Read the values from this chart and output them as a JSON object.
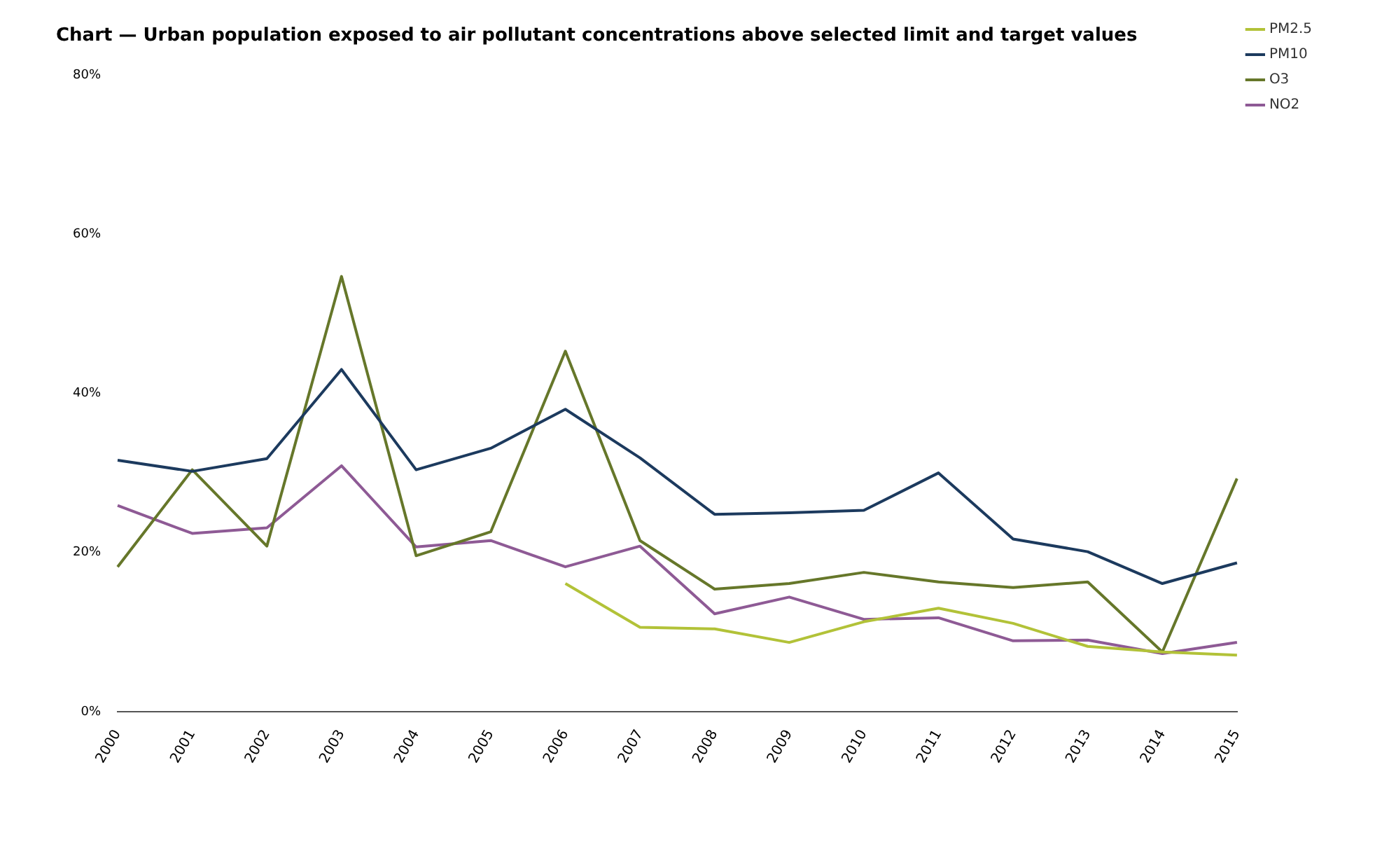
{
  "chart_data": {
    "type": "line",
    "title": "Chart — Urban population exposed to air pollutant concentrations above selected limit and target values",
    "categories": [
      "2000",
      "2001",
      "2002",
      "2003",
      "2004",
      "2005",
      "2006",
      "2007",
      "2008",
      "2009",
      "2010",
      "2011",
      "2012",
      "2013",
      "2014",
      "2015"
    ],
    "series": [
      {
        "name": "PM2.5",
        "color": "#b2c238",
        "values": [
          null,
          null,
          null,
          null,
          null,
          null,
          16.1,
          10.6,
          10.4,
          8.7,
          11.3,
          13.0,
          11.1,
          8.2,
          7.5,
          7.1
        ]
      },
      {
        "name": "PM10",
        "color": "#1c3a5e",
        "values": [
          31.6,
          30.2,
          31.8,
          43.0,
          30.4,
          33.1,
          38.0,
          31.9,
          24.8,
          25.0,
          25.3,
          30.0,
          21.7,
          20.1,
          16.1,
          18.7
        ]
      },
      {
        "name": "O3",
        "color": "#66772a",
        "values": [
          18.2,
          30.4,
          20.8,
          54.7,
          19.6,
          22.6,
          45.3,
          21.5,
          15.4,
          16.1,
          17.5,
          16.3,
          15.6,
          16.3,
          7.5,
          29.3
        ]
      },
      {
        "name": "NO2",
        "color": "#8e5a95",
        "values": [
          25.9,
          22.4,
          23.1,
          30.9,
          20.7,
          21.5,
          18.2,
          20.8,
          12.3,
          14.4,
          11.6,
          11.8,
          8.9,
          9.0,
          7.3,
          8.7
        ]
      }
    ],
    "ylim": [
      0,
      80
    ],
    "yticks": [
      {
        "value": 0,
        "label": "0%"
      },
      {
        "value": 20,
        "label": "20%"
      },
      {
        "value": 40,
        "label": "40%"
      },
      {
        "value": 60,
        "label": "60%"
      },
      {
        "value": 80,
        "label": "80%"
      }
    ],
    "grid": false,
    "legend": "top right",
    "marker": "none",
    "line_style": "solid"
  }
}
